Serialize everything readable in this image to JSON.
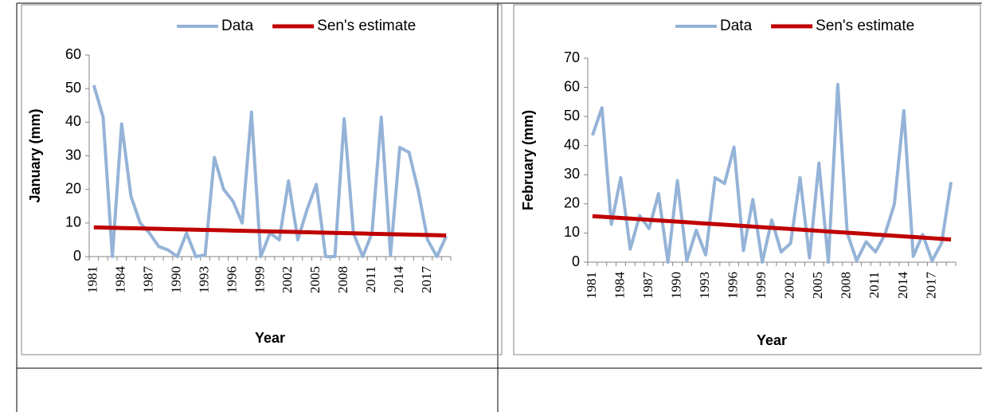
{
  "chart_data": [
    {
      "type": "line",
      "y_label": "January (mm)",
      "x_label": "Year",
      "categories": [
        "1981",
        null,
        null,
        "1984",
        null,
        null,
        "1987",
        null,
        null,
        "1990",
        null,
        null,
        "1993",
        null,
        null,
        "1996",
        null,
        null,
        "1999",
        null,
        null,
        "2002",
        null,
        null,
        "2005",
        null,
        null,
        "2008",
        null,
        null,
        "2011",
        null,
        null,
        "2014",
        null,
        null,
        "2017",
        null,
        null
      ],
      "ylim": [
        0,
        60
      ],
      "yticks": [
        0,
        10,
        20,
        30,
        40,
        50,
        60
      ],
      "grid": false,
      "legend": "top",
      "series": [
        {
          "name": "Data",
          "color": "#95b3d7",
          "values": [
            51,
            41.5,
            0,
            39.5,
            18,
            10,
            7,
            3,
            2,
            0,
            7,
            0,
            0.5,
            29.5,
            20,
            16.5,
            10,
            43,
            0,
            7,
            5,
            22.5,
            5,
            14,
            21.5,
            0,
            0,
            41,
            7,
            0,
            7,
            41.5,
            0.5,
            32.5,
            31,
            19.5,
            5,
            0,
            6
          ]
        },
        {
          "name": "Sen's estimate",
          "color": "#c00000",
          "values": [
            8.7,
            8.64,
            8.57,
            8.51,
            8.45,
            8.38,
            8.32,
            8.26,
            8.19,
            8.13,
            8.07,
            8.0,
            7.94,
            7.88,
            7.82,
            7.75,
            7.69,
            7.63,
            7.56,
            7.5,
            7.44,
            7.37,
            7.31,
            7.25,
            7.18,
            7.12,
            7.06,
            6.99,
            6.93,
            6.87,
            6.8,
            6.74,
            6.68,
            6.61,
            6.55,
            6.49,
            6.42,
            6.36,
            6.3
          ]
        }
      ]
    },
    {
      "type": "line",
      "y_label": "February (mm)",
      "x_label": "Year",
      "categories": [
        "1981",
        null,
        null,
        "1984",
        null,
        null,
        "1987",
        null,
        null,
        "1990",
        null,
        null,
        "1993",
        null,
        null,
        "1996",
        null,
        null,
        "1999",
        null,
        null,
        "2002",
        null,
        null,
        "2005",
        null,
        null,
        "2008",
        null,
        null,
        "2011",
        null,
        null,
        "2014",
        null,
        null,
        "2017",
        null,
        null
      ],
      "ylim": [
        0,
        70
      ],
      "yticks": [
        0,
        10,
        20,
        30,
        40,
        50,
        60,
        70
      ],
      "grid": false,
      "legend": "top",
      "series": [
        {
          "name": "Data",
          "color": "#95b3d7",
          "values": [
            43.5,
            53,
            13,
            29,
            4.5,
            16,
            11.5,
            23.5,
            0,
            28,
            0.5,
            11,
            2.5,
            29,
            27,
            39.5,
            4,
            21.5,
            0,
            14.5,
            3.5,
            6.5,
            29,
            1.5,
            34,
            0,
            61,
            10,
            0.5,
            7,
            3.5,
            9.5,
            20,
            52,
            2,
            9.5,
            0.5,
            6.5,
            27.5
          ]
        },
        {
          "name": "Sen's estimate",
          "color": "#c00000",
          "values": [
            15.8,
            15.59,
            15.38,
            15.17,
            14.96,
            14.75,
            14.54,
            14.33,
            14.12,
            13.91,
            13.69,
            13.48,
            13.27,
            13.06,
            12.85,
            12.64,
            12.43,
            12.22,
            12.01,
            11.8,
            11.59,
            11.38,
            11.17,
            10.96,
            10.75,
            10.54,
            10.33,
            10.12,
            9.91,
            9.7,
            9.48,
            9.27,
            9.06,
            8.85,
            8.64,
            8.43,
            8.22,
            8.01,
            7.8
          ]
        }
      ]
    }
  ]
}
